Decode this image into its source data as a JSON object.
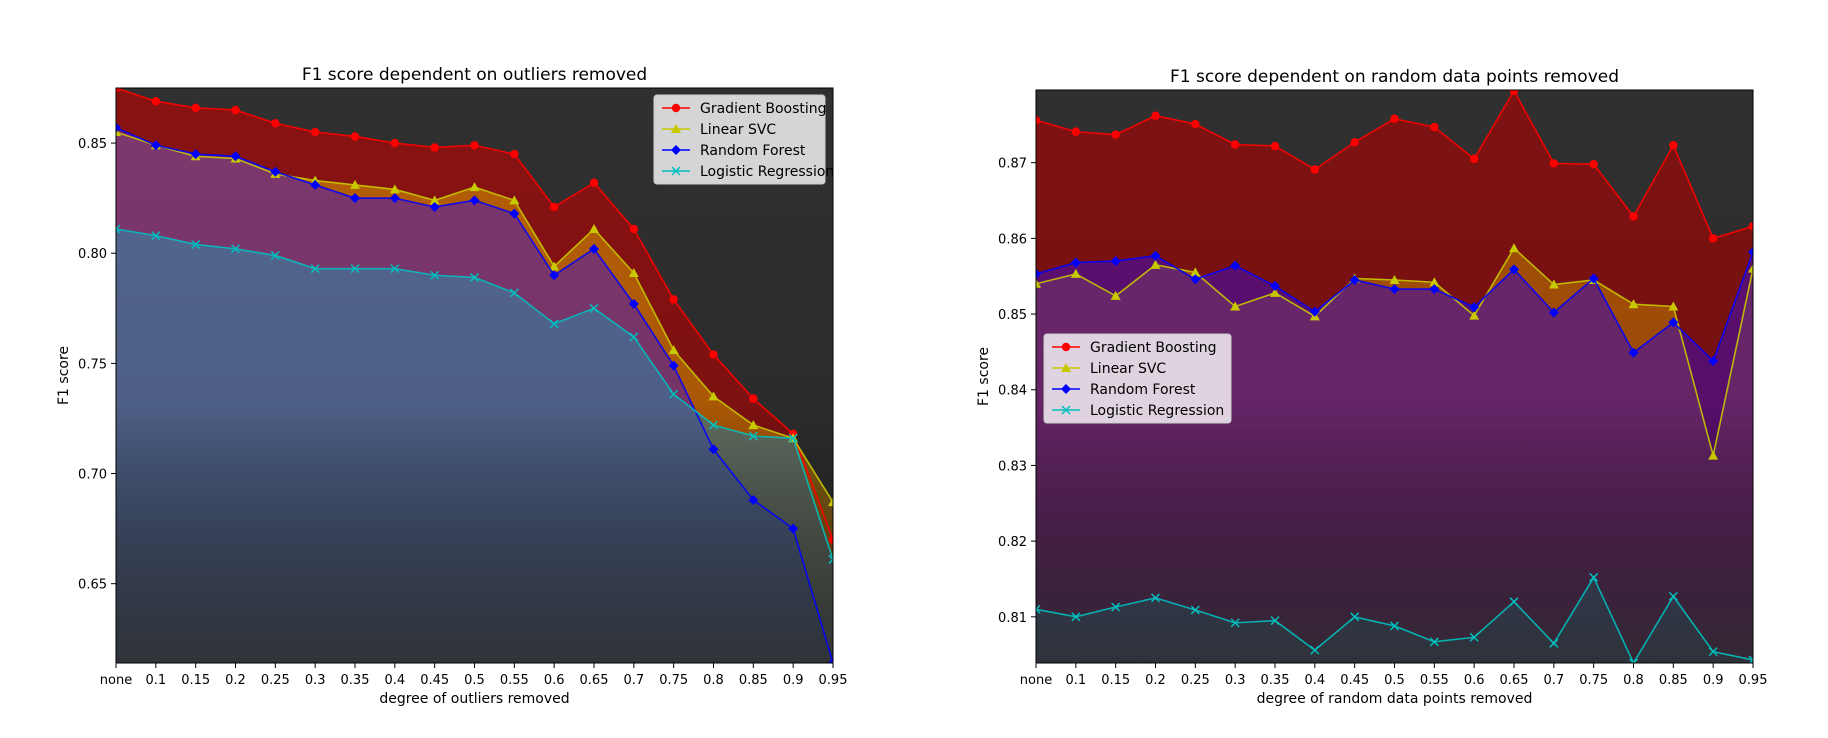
{
  "chart_data": [
    {
      "type": "area",
      "title": "F1 score dependent on outliers removed",
      "xlabel": "degree of outliers removed",
      "ylabel": "F1 score",
      "categories": [
        "none",
        "0.1",
        "0.15",
        "0.2",
        "0.25",
        "0.3",
        "0.35",
        "0.4",
        "0.45",
        "0.5",
        "0.55",
        "0.6",
        "0.65",
        "0.7",
        "0.75",
        "0.8",
        "0.85",
        "0.9",
        "0.95"
      ],
      "ylim": [
        0.614,
        0.875
      ],
      "yticks": [
        0.65,
        0.7,
        0.75,
        0.8,
        0.85
      ],
      "yticklabels": [
        "0.65",
        "0.70",
        "0.75",
        "0.80",
        "0.85"
      ],
      "legend_position": "upper right",
      "series": [
        {
          "name": "Gradient Boosting",
          "marker": "circle",
          "color": "#ff0000",
          "fill": "#c00000",
          "values": [
            0.875,
            0.869,
            0.866,
            0.865,
            0.859,
            0.855,
            0.853,
            0.85,
            0.848,
            0.849,
            0.845,
            0.821,
            0.832,
            0.811,
            0.779,
            0.754,
            0.734,
            0.718,
            0.67
          ]
        },
        {
          "name": "Linear SVC",
          "marker": "triangle",
          "color": "#c8c800",
          "fill": "#d59000",
          "values": [
            0.855,
            0.849,
            0.844,
            0.843,
            0.836,
            0.833,
            0.831,
            0.829,
            0.824,
            0.83,
            0.824,
            0.794,
            0.811,
            0.791,
            0.756,
            0.735,
            0.722,
            0.716,
            0.687
          ]
        },
        {
          "name": "Random Forest",
          "marker": "diamond",
          "color": "#0000ff",
          "fill": "#5a20b0",
          "values": [
            0.857,
            0.849,
            0.845,
            0.844,
            0.837,
            0.831,
            0.825,
            0.825,
            0.821,
            0.824,
            0.818,
            0.79,
            0.802,
            0.777,
            0.749,
            0.711,
            0.688,
            0.675,
            0.614
          ]
        },
        {
          "name": "Logistic Regression",
          "marker": "x",
          "color": "#00bfbf",
          "fill": "#3a86a8",
          "values": [
            0.811,
            0.808,
            0.804,
            0.802,
            0.799,
            0.793,
            0.793,
            0.793,
            0.79,
            0.789,
            0.782,
            0.768,
            0.775,
            0.762,
            0.736,
            0.722,
            0.717,
            0.716,
            0.661
          ]
        }
      ]
    },
    {
      "type": "area",
      "title": "F1 score dependent on random data points removed",
      "xlabel": "degree of random data points removed",
      "ylabel": "F1 score",
      "categories": [
        "none",
        "0.1",
        "0.15",
        "0.2",
        "0.25",
        "0.3",
        "0.35",
        "0.4",
        "0.45",
        "0.5",
        "0.55",
        "0.6",
        "0.65",
        "0.7",
        "0.75",
        "0.8",
        "0.85",
        "0.9",
        "0.95"
      ],
      "ylim": [
        0.8039,
        0.8796
      ],
      "yticks": [
        0.81,
        0.82,
        0.83,
        0.84,
        0.85,
        0.86,
        0.87
      ],
      "yticklabels": [
        "0.81",
        "0.82",
        "0.83",
        "0.84",
        "0.85",
        "0.86",
        "0.87"
      ],
      "legend_position": "center left",
      "series": [
        {
          "name": "Gradient Boosting",
          "marker": "circle",
          "color": "#ff0000",
          "fill": "#b00000",
          "values": [
            0.8756,
            0.8741,
            0.8737,
            0.8762,
            0.8751,
            0.8724,
            0.8722,
            0.8691,
            0.8727,
            0.8758,
            0.8747,
            0.8705,
            0.8795,
            0.8699,
            0.8698,
            0.8629,
            0.8723,
            0.86,
            0.8616
          ]
        },
        {
          "name": "Linear SVC",
          "marker": "triangle",
          "color": "#c8c800",
          "fill": "#c07800",
          "values": [
            0.854,
            0.8553,
            0.8524,
            0.8565,
            0.8555,
            0.851,
            0.8528,
            0.8497,
            0.8547,
            0.8545,
            0.8542,
            0.8498,
            0.8587,
            0.8539,
            0.8545,
            0.8513,
            0.851,
            0.8313,
            0.856
          ]
        },
        {
          "name": "Random Forest",
          "marker": "diamond",
          "color": "#0000ff",
          "fill": "#4a10b0",
          "values": [
            0.8553,
            0.8568,
            0.857,
            0.8577,
            0.8546,
            0.8564,
            0.8537,
            0.8503,
            0.8545,
            0.8533,
            0.8533,
            0.8509,
            0.8559,
            0.8502,
            0.8547,
            0.8449,
            0.8489,
            0.8438,
            0.8582
          ]
        },
        {
          "name": "Logistic Regression",
          "marker": "x",
          "color": "#00bfbf",
          "fill": "#3a86a8",
          "values": [
            0.811,
            0.81,
            0.8113,
            0.8125,
            0.8109,
            0.8092,
            0.8095,
            0.8056,
            0.81,
            0.8088,
            0.8067,
            0.8073,
            0.812,
            0.8065,
            0.8152,
            0.8039,
            0.8127,
            0.8054,
            0.8043
          ]
        }
      ]
    }
  ]
}
